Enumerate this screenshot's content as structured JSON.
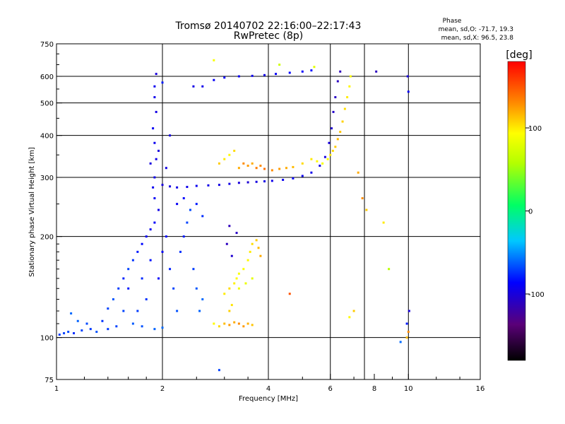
{
  "chart_data": {
    "type": "scatter",
    "title": "Tromsø 20140702 22:16:00–22:17:43",
    "subtitle": "RwPretec (8p)",
    "xlabel": "Frequency [MHz]",
    "ylabel": "Stationary phase Virtual Height [km]",
    "x_scale": "log",
    "y_scale": "log",
    "xlim": [
      1,
      16
    ],
    "ylim": [
      75,
      750
    ],
    "x_ticks": [
      1,
      2,
      4,
      6,
      8,
      10,
      16
    ],
    "y_ticks": [
      75,
      100,
      200,
      300,
      400,
      500,
      600,
      750
    ],
    "x_gridlines": [
      2,
      4,
      6,
      7.5,
      10
    ],
    "y_gridlines": [
      100,
      200,
      300,
      400,
      500,
      600
    ],
    "grid": true,
    "stats": {
      "heading": "Phase",
      "line_o": "mean, sd,O: -71.7, 19.3",
      "line_x": "mean, sd,X:  96.5, 23.8"
    },
    "colorbar": {
      "label": "[deg]",
      "range": [
        -180,
        180
      ],
      "ticks": [
        100,
        0,
        -100
      ],
      "colormap": "rainbow"
    },
    "series": [
      {
        "points": [
          {
            "x": 1.02,
            "y": 102,
            "c": -72
          },
          {
            "x": 1.05,
            "y": 103,
            "c": -70
          },
          {
            "x": 1.08,
            "y": 104,
            "c": -68
          },
          {
            "x": 1.12,
            "y": 103,
            "c": -75
          },
          {
            "x": 1.18,
            "y": 105,
            "c": -70
          },
          {
            "x": 1.25,
            "y": 106,
            "c": -72
          },
          {
            "x": 1.3,
            "y": 104,
            "c": -66
          },
          {
            "x": 1.1,
            "y": 118,
            "c": -60
          },
          {
            "x": 1.15,
            "y": 112,
            "c": -62
          },
          {
            "x": 1.22,
            "y": 110,
            "c": -68
          },
          {
            "x": 1.35,
            "y": 112,
            "c": -74
          },
          {
            "x": 1.4,
            "y": 122,
            "c": -70
          },
          {
            "x": 1.45,
            "y": 130,
            "c": -65
          },
          {
            "x": 1.5,
            "y": 140,
            "c": -72
          },
          {
            "x": 1.55,
            "y": 150,
            "c": -78
          },
          {
            "x": 1.6,
            "y": 160,
            "c": -70
          },
          {
            "x": 1.65,
            "y": 170,
            "c": -74
          },
          {
            "x": 1.7,
            "y": 180,
            "c": -80
          },
          {
            "x": 1.75,
            "y": 190,
            "c": -85
          },
          {
            "x": 1.8,
            "y": 200,
            "c": -90
          },
          {
            "x": 1.85,
            "y": 210,
            "c": -92
          },
          {
            "x": 1.9,
            "y": 220,
            "c": -88
          },
          {
            "x": 1.95,
            "y": 240,
            "c": -95
          },
          {
            "x": 1.9,
            "y": 260,
            "c": -90
          },
          {
            "x": 1.88,
            "y": 280,
            "c": -92
          },
          {
            "x": 1.9,
            "y": 300,
            "c": -94
          },
          {
            "x": 1.92,
            "y": 340,
            "c": -95
          },
          {
            "x": 1.9,
            "y": 380,
            "c": -92
          },
          {
            "x": 1.88,
            "y": 420,
            "c": -90
          },
          {
            "x": 1.92,
            "y": 470,
            "c": -96
          },
          {
            "x": 1.9,
            "y": 520,
            "c": -94
          },
          {
            "x": 1.9,
            "y": 560,
            "c": -92
          },
          {
            "x": 1.92,
            "y": 610,
            "c": -100
          },
          {
            "x": 2.0,
            "y": 575,
            "c": -80
          },
          {
            "x": 1.55,
            "y": 120,
            "c": -70
          },
          {
            "x": 1.6,
            "y": 140,
            "c": -80
          },
          {
            "x": 1.7,
            "y": 120,
            "c": -72
          },
          {
            "x": 1.75,
            "y": 150,
            "c": -76
          },
          {
            "x": 1.8,
            "y": 130,
            "c": -74
          },
          {
            "x": 1.85,
            "y": 170,
            "c": -82
          },
          {
            "x": 1.95,
            "y": 150,
            "c": -88
          },
          {
            "x": 2.0,
            "y": 180,
            "c": -90
          },
          {
            "x": 2.05,
            "y": 200,
            "c": -86
          },
          {
            "x": 2.1,
            "y": 160,
            "c": -78
          },
          {
            "x": 2.15,
            "y": 140,
            "c": -70
          },
          {
            "x": 2.2,
            "y": 120,
            "c": -66
          },
          {
            "x": 2.25,
            "y": 180,
            "c": -74
          },
          {
            "x": 2.3,
            "y": 200,
            "c": -80
          },
          {
            "x": 2.35,
            "y": 220,
            "c": -70
          },
          {
            "x": 2.4,
            "y": 240,
            "c": -68
          },
          {
            "x": 2.45,
            "y": 160,
            "c": -72
          },
          {
            "x": 2.5,
            "y": 140,
            "c": -65
          },
          {
            "x": 2.55,
            "y": 120,
            "c": -62
          },
          {
            "x": 2.6,
            "y": 130,
            "c": -60
          },
          {
            "x": 1.65,
            "y": 110,
            "c": -64
          },
          {
            "x": 1.75,
            "y": 108,
            "c": -66
          },
          {
            "x": 1.9,
            "y": 106,
            "c": -62
          },
          {
            "x": 2.0,
            "y": 107,
            "c": -60
          },
          {
            "x": 1.48,
            "y": 108,
            "c": -70
          },
          {
            "x": 1.4,
            "y": 106,
            "c": -72
          },
          {
            "x": 2.0,
            "y": 285,
            "c": -100
          },
          {
            "x": 2.1,
            "y": 282,
            "c": -98
          },
          {
            "x": 2.2,
            "y": 280,
            "c": -96
          },
          {
            "x": 2.35,
            "y": 281,
            "c": -94
          },
          {
            "x": 2.5,
            "y": 283,
            "c": -92
          },
          {
            "x": 2.7,
            "y": 284,
            "c": -95
          },
          {
            "x": 2.9,
            "y": 285,
            "c": -97
          },
          {
            "x": 3.1,
            "y": 287,
            "c": -96
          },
          {
            "x": 3.3,
            "y": 289,
            "c": -100
          },
          {
            "x": 3.5,
            "y": 290,
            "c": -102
          },
          {
            "x": 3.7,
            "y": 291,
            "c": -98
          },
          {
            "x": 3.9,
            "y": 292,
            "c": -96
          },
          {
            "x": 4.1,
            "y": 293,
            "c": -94
          },
          {
            "x": 4.4,
            "y": 295,
            "c": -92
          },
          {
            "x": 4.7,
            "y": 298,
            "c": -90
          },
          {
            "x": 5.0,
            "y": 303,
            "c": -92
          },
          {
            "x": 5.3,
            "y": 310,
            "c": -94
          },
          {
            "x": 5.6,
            "y": 325,
            "c": -96
          },
          {
            "x": 5.8,
            "y": 345,
            "c": -98
          },
          {
            "x": 5.95,
            "y": 380,
            "c": -100
          },
          {
            "x": 6.05,
            "y": 420,
            "c": -104
          },
          {
            "x": 6.12,
            "y": 470,
            "c": -106
          },
          {
            "x": 6.2,
            "y": 520,
            "c": -108
          },
          {
            "x": 6.3,
            "y": 580,
            "c": -110
          },
          {
            "x": 6.4,
            "y": 620,
            "c": -112
          },
          {
            "x": 2.45,
            "y": 560,
            "c": -96
          },
          {
            "x": 2.6,
            "y": 560,
            "c": -94
          },
          {
            "x": 2.8,
            "y": 585,
            "c": -90
          },
          {
            "x": 3.0,
            "y": 595,
            "c": -88
          },
          {
            "x": 3.3,
            "y": 600,
            "c": -92
          },
          {
            "x": 3.6,
            "y": 602,
            "c": -94
          },
          {
            "x": 3.9,
            "y": 605,
            "c": -96
          },
          {
            "x": 4.2,
            "y": 610,
            "c": -90
          },
          {
            "x": 4.6,
            "y": 615,
            "c": -86
          },
          {
            "x": 5.0,
            "y": 620,
            "c": -88
          },
          {
            "x": 5.3,
            "y": 625,
            "c": -84
          },
          {
            "x": 1.85,
            "y": 330,
            "c": -98
          },
          {
            "x": 1.95,
            "y": 360,
            "c": -100
          },
          {
            "x": 2.05,
            "y": 320,
            "c": -96
          },
          {
            "x": 2.1,
            "y": 400,
            "c": -98
          },
          {
            "x": 2.2,
            "y": 250,
            "c": -90
          },
          {
            "x": 2.3,
            "y": 260,
            "c": -86
          },
          {
            "x": 2.5,
            "y": 250,
            "c": -80
          },
          {
            "x": 2.6,
            "y": 230,
            "c": -75
          },
          {
            "x": 3.05,
            "y": 190,
            "c": -110
          },
          {
            "x": 3.1,
            "y": 215,
            "c": -112
          },
          {
            "x": 3.15,
            "y": 175,
            "c": -104
          },
          {
            "x": 3.25,
            "y": 205,
            "c": -108
          },
          {
            "x": 9.95,
            "y": 600,
            "c": -100
          },
          {
            "x": 10.0,
            "y": 540,
            "c": -90
          },
          {
            "x": 9.9,
            "y": 110,
            "c": -80
          },
          {
            "x": 10.05,
            "y": 120,
            "c": -100
          },
          {
            "x": 9.5,
            "y": 97,
            "c": -60
          },
          {
            "x": 8.1,
            "y": 620,
            "c": -110
          },
          {
            "x": 2.9,
            "y": 80,
            "c": -70
          }
        ]
      },
      {
        "points": [
          {
            "x": 2.9,
            "y": 330,
            "c": 110
          },
          {
            "x": 3.0,
            "y": 340,
            "c": 100
          },
          {
            "x": 3.1,
            "y": 350,
            "c": 95
          },
          {
            "x": 3.2,
            "y": 360,
            "c": 105
          },
          {
            "x": 3.3,
            "y": 320,
            "c": 120
          },
          {
            "x": 3.4,
            "y": 330,
            "c": 130
          },
          {
            "x": 3.5,
            "y": 325,
            "c": 125
          },
          {
            "x": 3.6,
            "y": 330,
            "c": 120
          },
          {
            "x": 3.7,
            "y": 320,
            "c": 135
          },
          {
            "x": 3.8,
            "y": 325,
            "c": 130
          },
          {
            "x": 3.9,
            "y": 318,
            "c": 140
          },
          {
            "x": 4.1,
            "y": 315,
            "c": 130
          },
          {
            "x": 4.3,
            "y": 318,
            "c": 125
          },
          {
            "x": 4.5,
            "y": 320,
            "c": 120
          },
          {
            "x": 4.7,
            "y": 322,
            "c": 115
          },
          {
            "x": 5.0,
            "y": 330,
            "c": 105
          },
          {
            "x": 5.3,
            "y": 340,
            "c": 100
          },
          {
            "x": 5.5,
            "y": 335,
            "c": 95
          },
          {
            "x": 5.7,
            "y": 330,
            "c": 90
          },
          {
            "x": 5.9,
            "y": 340,
            "c": 95
          },
          {
            "x": 6.0,
            "y": 350,
            "c": 100
          },
          {
            "x": 6.1,
            "y": 360,
            "c": 105
          },
          {
            "x": 6.2,
            "y": 370,
            "c": 110
          },
          {
            "x": 6.3,
            "y": 390,
            "c": 115
          },
          {
            "x": 6.4,
            "y": 410,
            "c": 112
          },
          {
            "x": 6.5,
            "y": 440,
            "c": 108
          },
          {
            "x": 6.6,
            "y": 480,
            "c": 104
          },
          {
            "x": 6.7,
            "y": 520,
            "c": 100
          },
          {
            "x": 6.8,
            "y": 560,
            "c": 96
          },
          {
            "x": 6.85,
            "y": 600,
            "c": 92
          },
          {
            "x": 2.8,
            "y": 110,
            "c": 95
          },
          {
            "x": 2.9,
            "y": 108,
            "c": 105
          },
          {
            "x": 3.0,
            "y": 110,
            "c": 115
          },
          {
            "x": 3.1,
            "y": 109,
            "c": 125
          },
          {
            "x": 3.2,
            "y": 111,
            "c": 120
          },
          {
            "x": 3.3,
            "y": 110,
            "c": 130
          },
          {
            "x": 3.4,
            "y": 108,
            "c": 125
          },
          {
            "x": 3.5,
            "y": 110,
            "c": 118
          },
          {
            "x": 3.6,
            "y": 109,
            "c": 112
          },
          {
            "x": 3.1,
            "y": 120,
            "c": 108
          },
          {
            "x": 3.15,
            "y": 125,
            "c": 102
          },
          {
            "x": 3.0,
            "y": 135,
            "c": 100
          },
          {
            "x": 3.1,
            "y": 140,
            "c": 105
          },
          {
            "x": 3.2,
            "y": 145,
            "c": 98
          },
          {
            "x": 3.25,
            "y": 150,
            "c": 95
          },
          {
            "x": 3.3,
            "y": 155,
            "c": 90
          },
          {
            "x": 3.4,
            "y": 160,
            "c": 92
          },
          {
            "x": 3.5,
            "y": 170,
            "c": 96
          },
          {
            "x": 3.55,
            "y": 180,
            "c": 100
          },
          {
            "x": 3.6,
            "y": 190,
            "c": 104
          },
          {
            "x": 3.7,
            "y": 195,
            "c": 110
          },
          {
            "x": 3.75,
            "y": 185,
            "c": 115
          },
          {
            "x": 3.8,
            "y": 175,
            "c": 120
          },
          {
            "x": 3.3,
            "y": 140,
            "c": 88
          },
          {
            "x": 3.45,
            "y": 145,
            "c": 84
          },
          {
            "x": 3.6,
            "y": 150,
            "c": 80
          },
          {
            "x": 2.8,
            "y": 670,
            "c": 90
          },
          {
            "x": 4.3,
            "y": 650,
            "c": 70
          },
          {
            "x": 5.4,
            "y": 640,
            "c": 80
          },
          {
            "x": 7.2,
            "y": 310,
            "c": 120
          },
          {
            "x": 7.4,
            "y": 260,
            "c": 130
          },
          {
            "x": 7.6,
            "y": 240,
            "c": 110
          },
          {
            "x": 8.5,
            "y": 220,
            "c": 100
          },
          {
            "x": 7.0,
            "y": 120,
            "c": 110
          },
          {
            "x": 6.8,
            "y": 115,
            "c": 95
          },
          {
            "x": 10.0,
            "y": 104,
            "c": 130
          },
          {
            "x": 9.9,
            "y": 100,
            "c": 115
          },
          {
            "x": 8.8,
            "y": 160,
            "c": 60
          },
          {
            "x": 4.6,
            "y": 135,
            "c": 150
          }
        ]
      }
    ]
  }
}
